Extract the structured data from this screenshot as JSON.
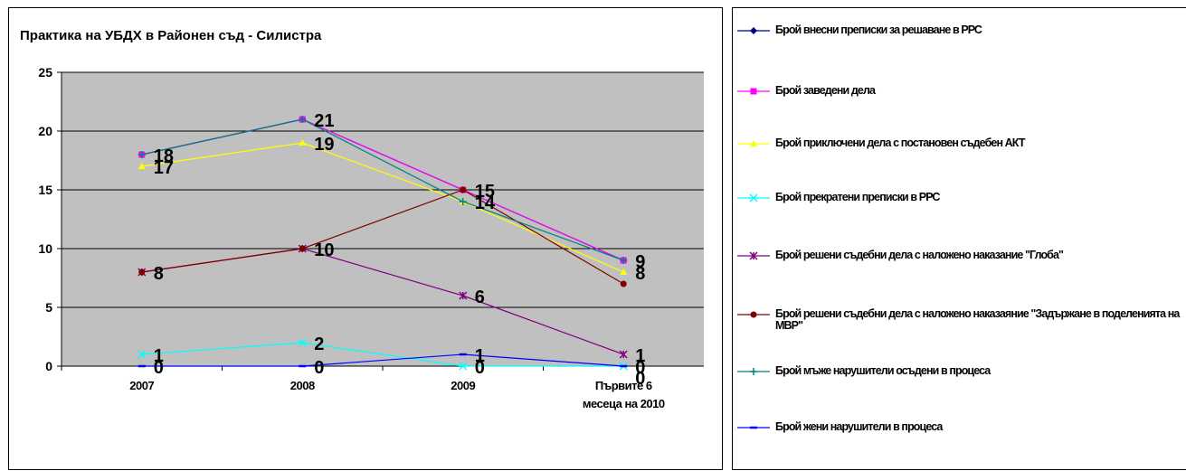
{
  "chart_data": {
    "type": "line",
    "title": "Практика на УБДХ в Районен съд - Силистра",
    "categories": [
      "2007",
      "2008",
      "2009",
      "Първите 6 месеца на 2010"
    ],
    "ylim": [
      0,
      25
    ],
    "yticks": [
      "0",
      "5",
      "10",
      "15",
      "20",
      "25"
    ],
    "grid": true,
    "plot_background": "#c0c0c0",
    "legend_position": "right",
    "series": [
      {
        "name": "Брой внесни преписки за решаване в РРС",
        "values": [
          18,
          21,
          15,
          9
        ],
        "color": "#000080",
        "marker": "diamond",
        "show_labels": false
      },
      {
        "name": "Брой заведени дела",
        "values": [
          18,
          21,
          15,
          9
        ],
        "color": "#ff00ff",
        "marker": "square",
        "show_labels": true
      },
      {
        "name": "Брой приключени дела с постановен съдебен АКТ",
        "values": [
          17,
          19,
          14,
          8
        ],
        "color": "#ffff00",
        "marker": "triangle",
        "show_labels": true
      },
      {
        "name": "Брой прекратени преписки в РРС",
        "values": [
          1,
          2,
          0,
          0
        ],
        "color": "#00ffff",
        "marker": "x",
        "show_labels": true
      },
      {
        "name": "Брой решени съдебни дела с наложено наказание \"Глоба\"",
        "values": [
          8,
          10,
          6,
          1
        ],
        "color": "#800080",
        "marker": "star",
        "show_labels": true
      },
      {
        "name": "Брой решени съдебни дела с наложено наказаяние \"Задържане в поделенията на МВР\"",
        "values": [
          8,
          10,
          15,
          7
        ],
        "color": "#800000",
        "marker": "circle",
        "show_labels": false
      },
      {
        "name": "Брой мъже нарушители осъдени в процеса",
        "values": [
          18,
          21,
          14,
          9
        ],
        "color": "#008080",
        "marker": "plus",
        "show_labels": false
      },
      {
        "name": "Брой жени нарушители в процеса",
        "values": [
          0,
          0,
          1,
          0
        ],
        "color": "#0000ff",
        "marker": "dash",
        "show_labels": true
      }
    ]
  }
}
